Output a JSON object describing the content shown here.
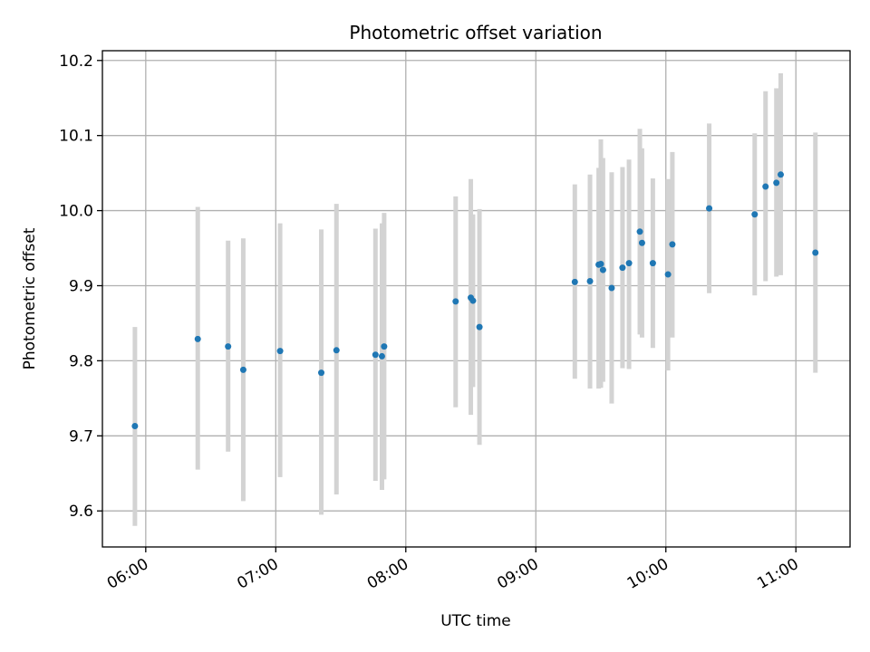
{
  "chart_data": {
    "type": "scatter",
    "title": "Photometric offset variation",
    "xlabel": "UTC time",
    "ylabel": "Photometric offset",
    "x_unit": "hours (UTC)",
    "xlim": [
      "05:40",
      "11:25"
    ],
    "ylim": [
      9.552,
      10.213
    ],
    "grid": true,
    "x_ticks": [
      "06:00",
      "07:00",
      "08:00",
      "09:00",
      "10:00",
      "11:00"
    ],
    "y_ticks": [
      "9.6",
      "9.7",
      "9.8",
      "9.9",
      "10.0",
      "10.1",
      "10.2"
    ],
    "point_color": "#1f77b4",
    "errorbar_color": "#d3d3d3",
    "points": [
      {
        "x": "05:55",
        "y": 9.713,
        "ylow": 9.58,
        "yhigh": 9.845
      },
      {
        "x": "06:24",
        "y": 9.829,
        "ylow": 9.655,
        "yhigh": 10.005
      },
      {
        "x": "06:38",
        "y": 9.819,
        "ylow": 9.679,
        "yhigh": 9.96
      },
      {
        "x": "06:45",
        "y": 9.788,
        "ylow": 9.613,
        "yhigh": 9.963
      },
      {
        "x": "07:02",
        "y": 9.813,
        "ylow": 9.645,
        "yhigh": 9.983
      },
      {
        "x": "07:21",
        "y": 9.784,
        "ylow": 9.595,
        "yhigh": 9.975
      },
      {
        "x": "07:28",
        "y": 9.814,
        "ylow": 9.622,
        "yhigh": 10.009
      },
      {
        "x": "07:46",
        "y": 9.808,
        "ylow": 9.64,
        "yhigh": 9.976
      },
      {
        "x": "07:49",
        "y": 9.806,
        "ylow": 9.628,
        "yhigh": 9.983
      },
      {
        "x": "07:50",
        "y": 9.819,
        "ylow": 9.642,
        "yhigh": 9.997
      },
      {
        "x": "08:23",
        "y": 9.879,
        "ylow": 9.738,
        "yhigh": 10.019
      },
      {
        "x": "08:30",
        "y": 9.884,
        "ylow": 9.728,
        "yhigh": 10.042
      },
      {
        "x": "08:31",
        "y": 9.88,
        "ylow": 9.765,
        "yhigh": 9.995
      },
      {
        "x": "08:34",
        "y": 9.845,
        "ylow": 9.688,
        "yhigh": 10.002
      },
      {
        "x": "09:18",
        "y": 9.905,
        "ylow": 9.776,
        "yhigh": 10.035
      },
      {
        "x": "09:25",
        "y": 9.906,
        "ylow": 9.763,
        "yhigh": 10.048
      },
      {
        "x": "09:29",
        "y": 9.928,
        "ylow": 9.763,
        "yhigh": 10.057
      },
      {
        "x": "09:30",
        "y": 9.929,
        "ylow": 9.764,
        "yhigh": 10.095
      },
      {
        "x": "09:31",
        "y": 9.921,
        "ylow": 9.772,
        "yhigh": 10.07
      },
      {
        "x": "09:35",
        "y": 9.897,
        "ylow": 9.743,
        "yhigh": 10.051
      },
      {
        "x": "09:40",
        "y": 9.924,
        "ylow": 9.79,
        "yhigh": 10.058
      },
      {
        "x": "09:43",
        "y": 9.93,
        "ylow": 9.789,
        "yhigh": 10.068
      },
      {
        "x": "09:48",
        "y": 9.972,
        "ylow": 9.835,
        "yhigh": 10.109
      },
      {
        "x": "09:49",
        "y": 9.957,
        "ylow": 9.831,
        "yhigh": 10.083
      },
      {
        "x": "09:54",
        "y": 9.93,
        "ylow": 9.817,
        "yhigh": 10.043
      },
      {
        "x": "10:01",
        "y": 9.915,
        "ylow": 9.787,
        "yhigh": 10.042
      },
      {
        "x": "10:03",
        "y": 9.955,
        "ylow": 9.831,
        "yhigh": 10.078
      },
      {
        "x": "10:20",
        "y": 10.003,
        "ylow": 9.89,
        "yhigh": 10.116
      },
      {
        "x": "10:41",
        "y": 9.995,
        "ylow": 9.887,
        "yhigh": 10.103
      },
      {
        "x": "10:46",
        "y": 10.032,
        "ylow": 9.906,
        "yhigh": 10.159
      },
      {
        "x": "10:51",
        "y": 10.037,
        "ylow": 9.912,
        "yhigh": 10.163
      },
      {
        "x": "10:53",
        "y": 10.048,
        "ylow": 9.914,
        "yhigh": 10.183
      },
      {
        "x": "11:09",
        "y": 9.944,
        "ylow": 9.784,
        "yhigh": 10.104
      }
    ]
  }
}
